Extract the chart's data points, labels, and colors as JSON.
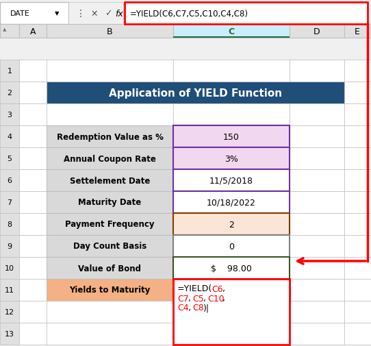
{
  "title": "Application of YIELD Function",
  "title_bg": "#1F4E79",
  "title_color": "white",
  "formula_bar_text": "=YIELD(C6,C7,C5,C10,C4,C8)",
  "rows": [
    {
      "label": "Redemption Value as %",
      "value": "150",
      "label_bg": "#D9D9D9",
      "value_bg": "#F2D7F0",
      "border_color": "#7030A0"
    },
    {
      "label": "Annual Coupon Rate",
      "value": "3%",
      "label_bg": "#D9D9D9",
      "value_bg": "#F2D7F0",
      "border_color": "#7030A0"
    },
    {
      "label": "Settelement Date",
      "value": "11/5/2018",
      "label_bg": "#D9D9D9",
      "value_bg": "#FFFFFF",
      "border_color": "#7030A0"
    },
    {
      "label": "Maturity Date",
      "value": "10/18/2022",
      "label_bg": "#D9D9D9",
      "value_bg": "#FFFFFF",
      "border_color": "#7030A0"
    },
    {
      "label": "Payment Frequency",
      "value": "2",
      "label_bg": "#D9D9D9",
      "value_bg": "#FCE4D6",
      "border_color": "#833C00"
    },
    {
      "label": "Day Count Basis",
      "value": "0",
      "label_bg": "#D9D9D9",
      "value_bg": "#FFFFFF",
      "border_color": "#808080"
    },
    {
      "label": "Value of Bond",
      "value": "$    98.00",
      "label_bg": "#D9D9D9",
      "value_bg": "#FFFFFF",
      "border_color": "#375623"
    },
    {
      "label": "Yields to Maturity",
      "value": "",
      "label_bg": "#F4B183",
      "value_bg": "#FFFFFF",
      "border_color": "#FF0000"
    }
  ],
  "formula_cell_text_line1": "=YIELD(C6,",
  "formula_cell_text_line2": "C7,C5,C10,",
  "formula_cell_text_line3": "C4,C8)|",
  "formula_cell_colored_parts": {
    "C6": "#FF0000",
    "C7": "#FF0000",
    "C5": "#FF0000",
    "C10": "#FF0000",
    "C4": "#FF0000",
    "C8": "#FF0000"
  },
  "col_header_bg": "#D9D9D9",
  "spreadsheet_bg": "#FFFFFF",
  "grid_color": "#BFBFBF",
  "arrow_color": "#FF0000"
}
